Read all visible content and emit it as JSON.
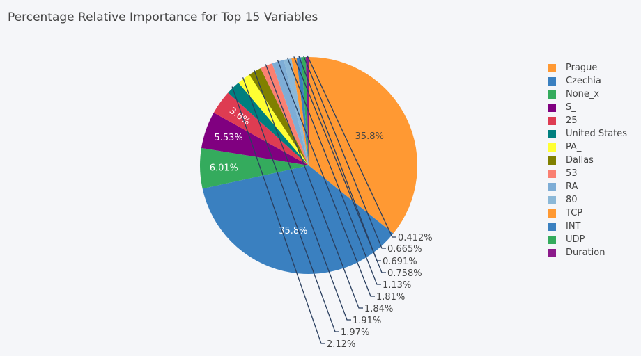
{
  "chart_data": {
    "type": "pie",
    "title": "Percentage Relative Importance for Top 15 Variables",
    "labels": [
      "Prague",
      "Czechia",
      "None_x",
      "S_",
      "25",
      "United States",
      "PA_",
      "Dallas",
      "53",
      "RA_",
      "80",
      "TCP",
      "INT",
      "UDP",
      "Duration"
    ],
    "values": [
      35.8,
      35.8,
      6.01,
      5.53,
      3.6,
      2.12,
      1.97,
      1.91,
      1.84,
      1.81,
      1.13,
      0.758,
      0.691,
      0.665,
      0.412
    ],
    "text": [
      "35.8%",
      "35.8%",
      "6.01%",
      "5.53%",
      "3.6%",
      "2.12%",
      "1.97%",
      "1.91%",
      "1.84%",
      "1.81%",
      "1.13%",
      "0.758%",
      "0.691%",
      "0.665%",
      "0.412%"
    ],
    "colors": [
      "#ff9933",
      "#3a80c0",
      "#34ab5d",
      "#800080",
      "#de3c52",
      "#007f7f",
      "#ffff33",
      "#808000",
      "#fa8072",
      "#7eadd6",
      "#8bb8d8",
      "#ff9933",
      "#3a80c0",
      "#34ab5d",
      "#8b1a8b"
    ],
    "legend_position": "right",
    "direction": "clockwise"
  }
}
